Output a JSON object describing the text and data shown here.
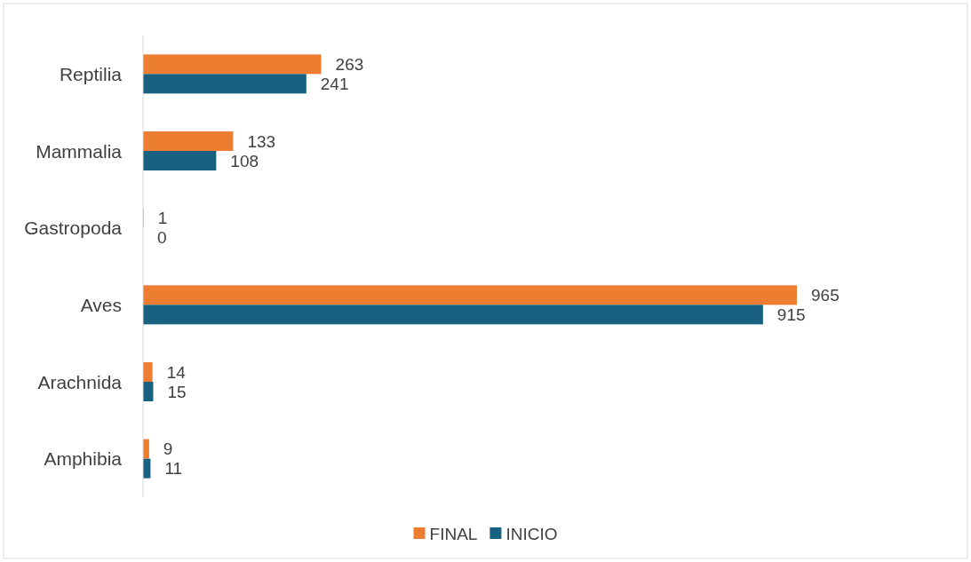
{
  "chart_data": {
    "type": "bar",
    "orientation": "horizontal",
    "categories": [
      "Reptilia",
      "Mammalia",
      "Gastropoda",
      "Aves",
      "Arachnida",
      "Amphibia"
    ],
    "series": [
      {
        "name": "FINAL",
        "color": "#ed7d31",
        "values": [
          263,
          133,
          1,
          965,
          14,
          9
        ]
      },
      {
        "name": "INICIO",
        "color": "#17607f",
        "values": [
          241,
          108,
          0,
          915,
          15,
          11
        ]
      }
    ],
    "data_labels": true,
    "legend": "bottom"
  }
}
